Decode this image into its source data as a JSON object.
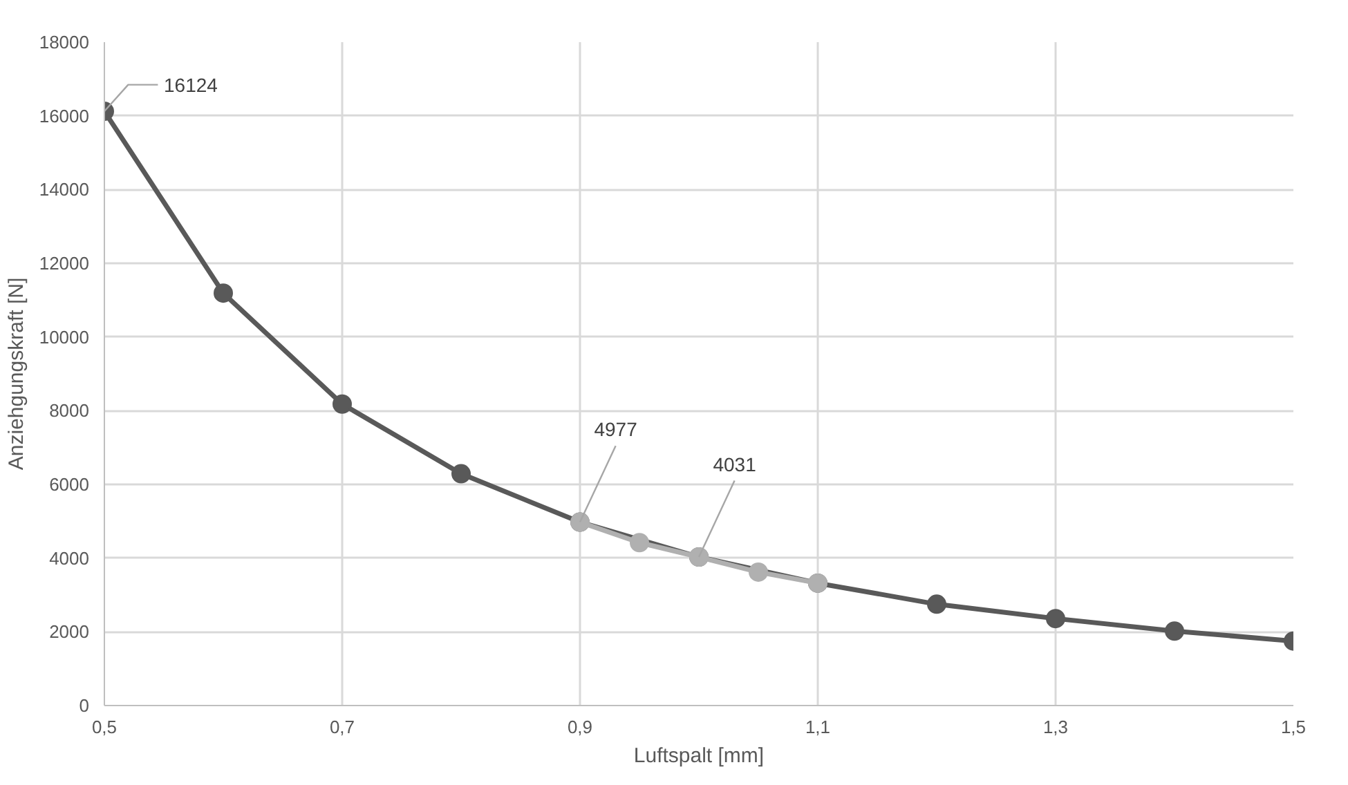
{
  "chart_data": {
    "type": "line",
    "xlabel": "Luftspalt [mm]",
    "ylabel": "Anziehgungskraft [N]",
    "xlim": [
      0.5,
      1.5
    ],
    "xticks": [
      {
        "value": 0.5,
        "label": "0,5"
      },
      {
        "value": 0.7,
        "label": "0,7"
      },
      {
        "value": 0.9,
        "label": "0,9"
      },
      {
        "value": 1.1,
        "label": "1,1"
      },
      {
        "value": 1.3,
        "label": "1,3"
      },
      {
        "value": 1.5,
        "label": "1,5"
      }
    ],
    "ylim": [
      0,
      18000
    ],
    "yticks": [
      0,
      2000,
      4000,
      6000,
      8000,
      10000,
      12000,
      14000,
      16000,
      18000
    ],
    "grid": true,
    "marker": "circle",
    "line_style": "solid",
    "series": [
      {
        "color": "#595959",
        "x": [
          0.5,
          0.6,
          0.7,
          0.8,
          0.9,
          1.0,
          1.1,
          1.2,
          1.3,
          1.4,
          1.5
        ],
        "values": [
          16124,
          11190,
          8180,
          6290,
          4977,
          4031,
          3320,
          2750,
          2360,
          2020,
          1750
        ],
        "value_labels": [
          "16124",
          null,
          null,
          null,
          null,
          null,
          null,
          null,
          null,
          null,
          null
        ]
      },
      {
        "color": "#b0b0b0",
        "x": [
          0.9,
          0.95,
          1.0,
          1.05,
          1.1
        ],
        "values": [
          4977,
          4420,
          4031,
          3620,
          3320
        ],
        "value_labels": [
          "4977",
          null,
          "4031",
          null,
          null
        ]
      }
    ]
  }
}
